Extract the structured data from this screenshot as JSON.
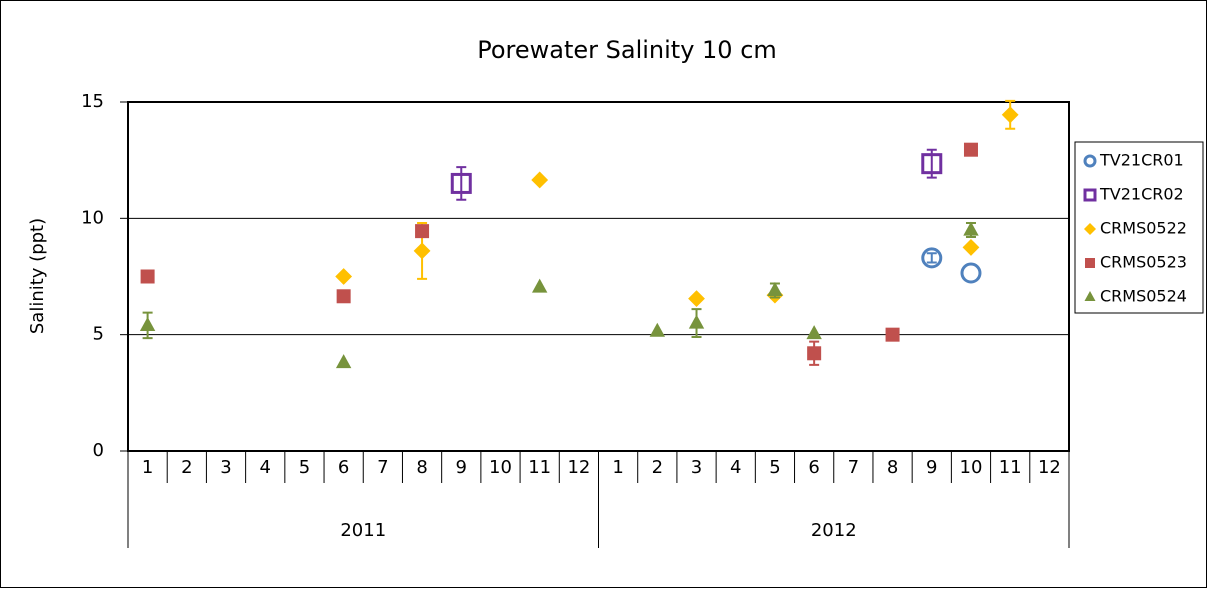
{
  "chart_data": {
    "type": "scatter",
    "title": "Porewater Salinity 10 cm",
    "y_label": "Salinity (ppt)",
    "categories": [
      "1",
      "2",
      "3",
      "4",
      "5",
      "6",
      "7",
      "8",
      "9",
      "10",
      "11",
      "12",
      "1",
      "2",
      "3",
      "4",
      "5",
      "6",
      "7",
      "8",
      "9",
      "10",
      "11",
      "12"
    ],
    "groups": [
      "2011",
      "2012"
    ],
    "ylim": [
      0,
      15
    ],
    "yticks": [
      0,
      5,
      10,
      15
    ],
    "grid": true,
    "legend": "right",
    "series": [
      {
        "name": "TV21CR01",
        "color": "#4f81bd",
        "marker": "circle",
        "values": [
          null,
          null,
          null,
          null,
          null,
          null,
          null,
          null,
          null,
          null,
          null,
          null,
          null,
          null,
          null,
          null,
          null,
          null,
          null,
          null,
          8.3,
          7.65,
          null,
          null
        ],
        "errors": [
          null,
          null,
          null,
          null,
          null,
          null,
          null,
          null,
          null,
          null,
          null,
          null,
          null,
          null,
          null,
          null,
          null,
          null,
          null,
          null,
          0.2,
          null,
          null,
          null
        ]
      },
      {
        "name": "TV21CR02",
        "color": "#7030a0",
        "marker": "square-open",
        "values": [
          null,
          null,
          null,
          null,
          null,
          null,
          null,
          null,
          11.5,
          null,
          null,
          null,
          null,
          null,
          null,
          null,
          null,
          null,
          null,
          null,
          12.35,
          null,
          null,
          null
        ],
        "errors": [
          null,
          null,
          null,
          null,
          null,
          null,
          null,
          null,
          0.7,
          null,
          null,
          null,
          null,
          null,
          null,
          null,
          null,
          null,
          null,
          null,
          0.6,
          null,
          null,
          null
        ]
      },
      {
        "name": "CRMS0522",
        "color": "#ffc000",
        "marker": "diamond",
        "values": [
          null,
          null,
          null,
          null,
          null,
          7.5,
          null,
          8.6,
          null,
          null,
          11.65,
          null,
          null,
          null,
          6.55,
          null,
          6.7,
          null,
          null,
          null,
          null,
          8.75,
          14.45,
          null
        ],
        "errors": [
          null,
          null,
          null,
          null,
          null,
          null,
          null,
          1.2,
          null,
          null,
          null,
          null,
          null,
          null,
          null,
          null,
          null,
          null,
          null,
          null,
          null,
          null,
          0.6,
          null
        ]
      },
      {
        "name": "CRMS0523",
        "color": "#c0504d",
        "marker": "square",
        "values": [
          7.5,
          null,
          null,
          null,
          null,
          6.65,
          null,
          9.45,
          null,
          null,
          null,
          null,
          null,
          null,
          null,
          null,
          null,
          4.2,
          null,
          5.0,
          null,
          12.95,
          null,
          null
        ],
        "errors": [
          null,
          null,
          null,
          null,
          null,
          null,
          null,
          null,
          null,
          null,
          null,
          null,
          null,
          null,
          null,
          null,
          null,
          0.5,
          null,
          null,
          null,
          null,
          null,
          null
        ]
      },
      {
        "name": "CRMS0524",
        "color": "#77933c",
        "marker": "triangle",
        "values": [
          5.4,
          null,
          null,
          null,
          null,
          3.8,
          null,
          null,
          null,
          null,
          7.05,
          null,
          null,
          5.15,
          5.5,
          null,
          6.9,
          5.05,
          null,
          null,
          null,
          9.5,
          null,
          null
        ],
        "errors": [
          0.55,
          null,
          null,
          null,
          null,
          null,
          null,
          null,
          null,
          null,
          null,
          null,
          null,
          null,
          0.6,
          null,
          0.3,
          null,
          null,
          null,
          null,
          0.3,
          null,
          null
        ]
      }
    ]
  }
}
